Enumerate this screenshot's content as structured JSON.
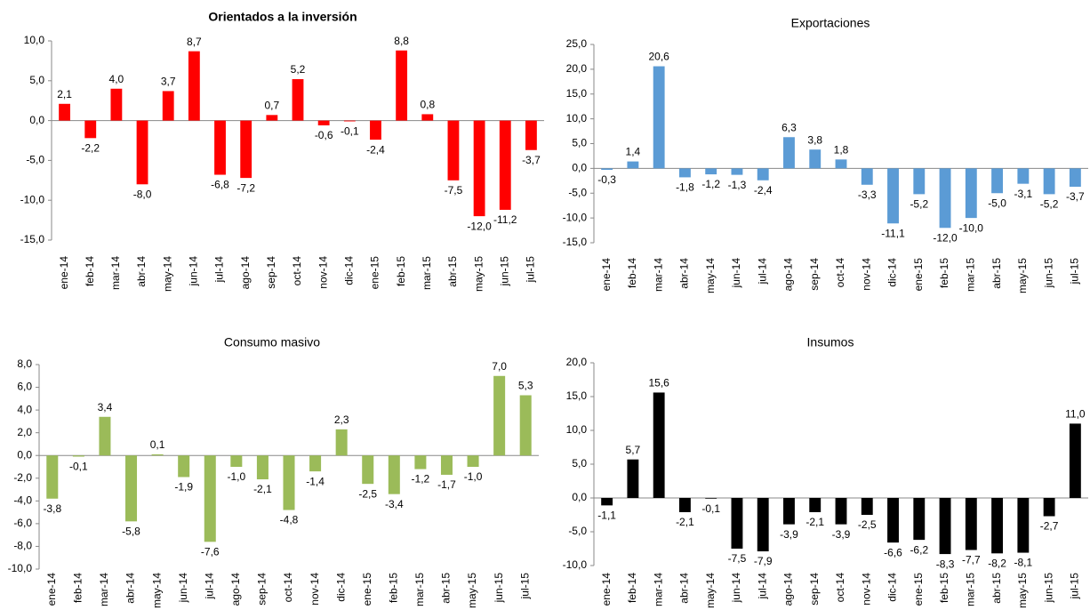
{
  "chart_data": [
    {
      "type": "bar",
      "title": "Orientados a la inversión",
      "color": "#ff0000",
      "categories": [
        "ene-14",
        "feb-14",
        "mar-14",
        "abr-14",
        "may-14",
        "jun-14",
        "jul-14",
        "ago-14",
        "sep-14",
        "oct-14",
        "nov-14",
        "dic-14",
        "ene-15",
        "feb-15",
        "mar-15",
        "abr-15",
        "may-15",
        "jun-15",
        "jul-15"
      ],
      "values": [
        2.1,
        -2.2,
        4.0,
        -8.0,
        3.7,
        8.7,
        -6.8,
        -7.2,
        0.7,
        5.2,
        -0.6,
        -0.1,
        -2.4,
        8.8,
        0.8,
        -7.5,
        -12.0,
        -11.2,
        -3.7
      ],
      "value_labels": [
        "2,1",
        "-2,2",
        "4,0",
        "-8,0",
        "3,7",
        "8,7",
        "-6,8",
        "-7,2",
        "0,7",
        "5,2",
        "-0,6",
        "-0,1",
        "-2,4",
        "8,8",
        "0,8",
        "-7,5",
        "-12,0",
        "-11,2",
        "-3,7"
      ],
      "ylim": [
        -15,
        10
      ],
      "yticks": [
        {
          "value": 10,
          "label": "10,0"
        },
        {
          "value": 5,
          "label": "5,0"
        },
        {
          "value": 0,
          "label": "0,0"
        },
        {
          "value": -5,
          "label": "-5,0"
        },
        {
          "value": -10,
          "label": "-10,0"
        },
        {
          "value": -15,
          "label": "-15,0"
        }
      ]
    },
    {
      "type": "bar",
      "title": "Exportaciones",
      "color": "#5b9bd5",
      "categories": [
        "ene-14",
        "feb-14",
        "mar-14",
        "abr-14",
        "may-14",
        "jun-14",
        "jul-14",
        "ago-14",
        "sep-14",
        "oct-14",
        "nov-14",
        "dic-14",
        "ene-15",
        "feb-15",
        "mar-15",
        "abr-15",
        "may-15",
        "jun-15",
        "jul-15"
      ],
      "values": [
        -0.3,
        1.4,
        20.6,
        -1.8,
        -1.2,
        -1.3,
        -2.4,
        6.3,
        3.8,
        1.8,
        -3.3,
        -11.1,
        -5.2,
        -12.0,
        -10.0,
        -5.0,
        -3.1,
        -5.2,
        -3.7
      ],
      "value_labels": [
        "-0,3",
        "1,4",
        "20,6",
        "-1,8",
        "-1,2",
        "-1,3",
        "-2,4",
        "6,3",
        "3,8",
        "1,8",
        "-3,3",
        "-11,1",
        "-5,2",
        "-12,0",
        "-10,0",
        "-5,0",
        "-3,1",
        "-5,2",
        "-3,7"
      ],
      "ylim": [
        -15,
        25
      ],
      "yticks": [
        {
          "value": 25,
          "label": "25,0"
        },
        {
          "value": 20,
          "label": "20,0"
        },
        {
          "value": 15,
          "label": "15,0"
        },
        {
          "value": 10,
          "label": "10,0"
        },
        {
          "value": 5,
          "label": "5,0"
        },
        {
          "value": 0,
          "label": "0,0"
        },
        {
          "value": -5,
          "label": "-5,0"
        },
        {
          "value": -10,
          "label": "-10,0"
        },
        {
          "value": -15,
          "label": "-15,0"
        }
      ]
    },
    {
      "type": "bar",
      "title": "Consumo masivo",
      "color": "#9bbb59",
      "categories": [
        "ene-14",
        "feb-14",
        "mar-14",
        "abr-14",
        "may-14",
        "jun-14",
        "jul-14",
        "ago-14",
        "sep-14",
        "oct-14",
        "nov-14",
        "dic-14",
        "ene-15",
        "feb-15",
        "mar-15",
        "abr-15",
        "may-15",
        "jun-15",
        "jul-15"
      ],
      "values": [
        -3.8,
        -0.1,
        3.4,
        -5.8,
        0.1,
        -1.9,
        -7.6,
        -1.0,
        -2.1,
        -4.8,
        -1.4,
        2.3,
        -2.5,
        -3.4,
        -1.2,
        -1.7,
        -1.0,
        7.0,
        5.3
      ],
      "value_labels": [
        "-3,8",
        "-0,1",
        "3,4",
        "-5,8",
        "0,1",
        "-1,9",
        "-7,6",
        "-1,0",
        "-2,1",
        "-4,8",
        "-1,4",
        "2,3",
        "-2,5",
        "-3,4",
        "-1,2",
        "-1,7",
        "-1,0",
        "7,0",
        "5,3"
      ],
      "ylim": [
        -10,
        8
      ],
      "yticks": [
        {
          "value": 8,
          "label": "8,0"
        },
        {
          "value": 6,
          "label": "6,0"
        },
        {
          "value": 4,
          "label": "4,0"
        },
        {
          "value": 2,
          "label": "2,0"
        },
        {
          "value": 0,
          "label": "0,0"
        },
        {
          "value": -2,
          "label": "-2,0"
        },
        {
          "value": -4,
          "label": "-4,0"
        },
        {
          "value": -6,
          "label": "-6,0"
        },
        {
          "value": -8,
          "label": "-8,0"
        },
        {
          "value": -10,
          "label": "-10,0"
        }
      ]
    },
    {
      "type": "bar",
      "title": "Insumos",
      "color": "#000000",
      "categories": [
        "ene-14",
        "feb-14",
        "mar-14",
        "abr-14",
        "may-14",
        "jun-14",
        "jul-14",
        "ago-14",
        "sep-14",
        "oct-14",
        "nov-14",
        "dic-14",
        "ene-15",
        "feb-15",
        "mar-15",
        "abr-15",
        "may-15",
        "jun-15",
        "jul-15"
      ],
      "values": [
        -1.1,
        5.7,
        15.6,
        -2.1,
        -0.1,
        -7.5,
        -7.9,
        -3.9,
        -2.1,
        -3.9,
        -2.5,
        -6.6,
        -6.2,
        -8.3,
        -7.7,
        -8.2,
        -8.1,
        -2.7,
        11.0
      ],
      "value_labels": [
        "-1,1",
        "5,7",
        "15,6",
        "-2,1",
        "-0,1",
        "-7,5",
        "-7,9",
        "-3,9",
        "-2,1",
        "-3,9",
        "-2,5",
        "-6,6",
        "-6,2",
        "-8,3",
        "-7,7",
        "-8,2",
        "-8,1",
        "-2,7",
        "11,0"
      ],
      "ylim": [
        -10,
        20
      ],
      "yticks": [
        {
          "value": 20,
          "label": "20,0"
        },
        {
          "value": 15,
          "label": "15,0"
        },
        {
          "value": 10,
          "label": "10,0"
        },
        {
          "value": 5,
          "label": "5,0"
        },
        {
          "value": 0,
          "label": "0,0"
        },
        {
          "value": -5,
          "label": "-5,0"
        },
        {
          "value": -10,
          "label": "-10,0"
        }
      ]
    }
  ]
}
